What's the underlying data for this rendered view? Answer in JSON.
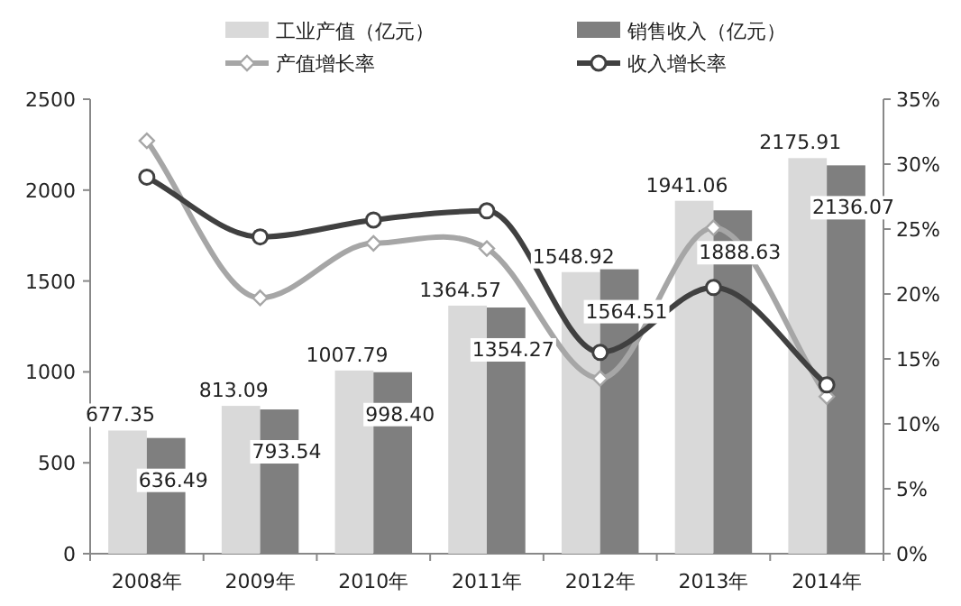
{
  "chart_data": {
    "type": "bar",
    "categories": [
      "2008年",
      "2009年",
      "2010年",
      "2011年",
      "2012年",
      "2013年",
      "2014年"
    ],
    "series": [
      {
        "name": "工业产值（亿元）",
        "type": "bar",
        "color": "#d9d9d9",
        "values": [
          677.35,
          813.09,
          1007.79,
          1364.57,
          1548.92,
          1941.06,
          2175.91
        ],
        "data_labels": true
      },
      {
        "name": "销售收入（亿元）",
        "type": "bar",
        "color": "#7f7f7f",
        "values": [
          636.49,
          793.54,
          998.4,
          1354.27,
          1564.51,
          1888.63,
          2136.07
        ],
        "value_labels": [
          "636.49",
          "793.54",
          "998.40",
          "1354.27",
          "1564.51",
          "1888.63",
          "2136.07"
        ]
      },
      {
        "name": "产值增长率",
        "type": "line",
        "axis": "y2",
        "color": "#a6a6a6",
        "marker": "diamond",
        "values": [
          31.8,
          19.7,
          23.9,
          23.5,
          13.5,
          25.1,
          12.1
        ]
      },
      {
        "name": "收入增长率",
        "type": "line",
        "axis": "y2",
        "color": "#404040",
        "marker": "circle",
        "values": [
          29.0,
          24.4,
          25.7,
          26.4,
          15.5,
          20.5,
          13.0
        ]
      }
    ],
    "ylim": [
      0,
      2500
    ],
    "yticks": [
      0,
      500,
      1000,
      1500,
      2000,
      2500
    ],
    "y2lim": [
      0,
      35
    ],
    "y2ticks": [
      {
        "value": 0,
        "label": "0%"
      },
      {
        "value": 5,
        "label": "5%"
      },
      {
        "value": 10,
        "label": "10%"
      },
      {
        "value": 15,
        "label": "15%"
      },
      {
        "value": 20,
        "label": "20%"
      },
      {
        "value": 25,
        "label": "25%"
      },
      {
        "value": 30,
        "label": "30%"
      },
      {
        "value": 35,
        "label": "35%"
      }
    ],
    "grid": false,
    "legend": "top"
  }
}
